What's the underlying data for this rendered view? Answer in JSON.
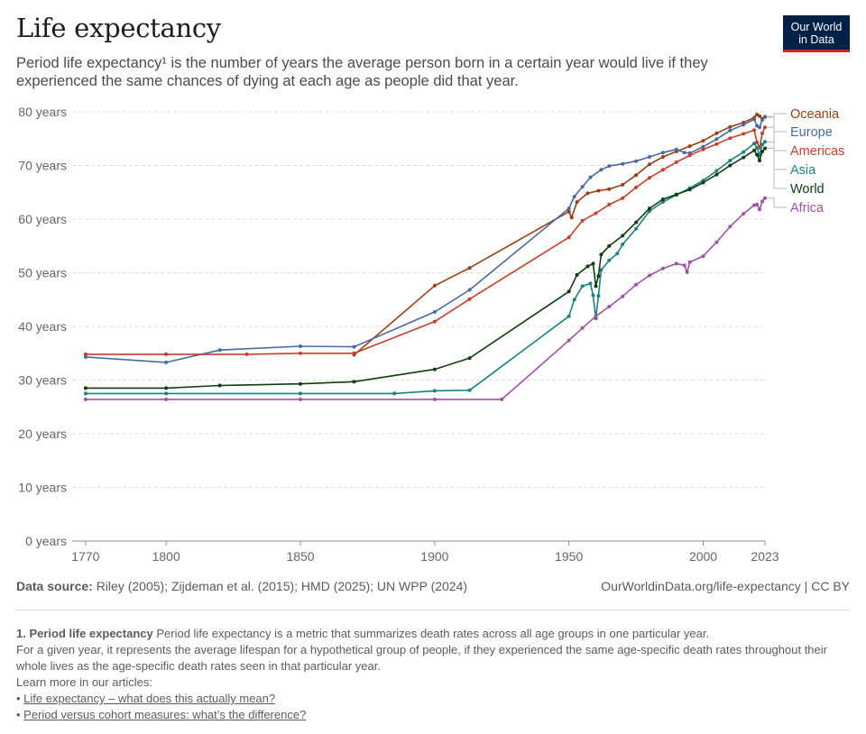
{
  "header": {
    "title": "Life expectancy",
    "subtitle": "Period life expectancy¹ is the number of years the average person born in a certain year would live if they experienced the same chances of dying at each age as people did that year.",
    "logo_line1": "Our World",
    "logo_line2": "in Data"
  },
  "footer": {
    "source_label": "Data source:",
    "source_text": " Riley (2005); Zijdeman et al. (2015); HMD (2025); UN WPP (2024)",
    "license": "OurWorldinData.org/life-expectancy | CC BY",
    "note_title": "1. Period life expectancy",
    "note_body": " Period life expectancy is a metric that summarizes death rates across all age groups in one particular year.",
    "note_body2": "For a given year, it represents the average lifespan for a hypothetical group of people, if they experienced the same age-specific death rates throughout their whole lives as the age-specific death rates seen in that particular year.",
    "note_learn": "Learn more in our articles:",
    "links": [
      "Life expectancy – what does this actually mean?",
      "Period versus cohort measures: what’s the difference?"
    ]
  },
  "chart_data": {
    "type": "line",
    "title": "Life expectancy",
    "xlim": [
      1765,
      2023
    ],
    "ylim": [
      0,
      80
    ],
    "x_ticks": [
      1770,
      1800,
      1850,
      1900,
      1950,
      2000,
      2023
    ],
    "x_tick_labels": [
      "1770",
      "1800",
      "1850",
      "1900",
      "1950",
      "2000",
      "2023"
    ],
    "y_ticks": [
      0,
      10,
      20,
      30,
      40,
      50,
      60,
      70,
      80
    ],
    "y_tick_labels": [
      "0 years",
      "10 years",
      "20 years",
      "30 years",
      "40 years",
      "50 years",
      "60 years",
      "70 years",
      "80 years"
    ],
    "grid": "horizontal dashed",
    "legend": "right, end labels",
    "series": [
      {
        "name": "Oceania",
        "color": "#9a3e0f",
        "points": [
          [
            1870,
            34.7
          ],
          [
            1900,
            47.6
          ],
          [
            1913,
            50.9
          ],
          [
            1950,
            61.4
          ],
          [
            1951,
            60.3
          ],
          [
            1953,
            63.2
          ],
          [
            1957,
            64.8
          ],
          [
            1961,
            65.3
          ],
          [
            1965,
            65.6
          ],
          [
            1970,
            66.4
          ],
          [
            1975,
            68.2
          ],
          [
            1980,
            70.2
          ],
          [
            1985,
            71.6
          ],
          [
            1990,
            72.6
          ],
          [
            1995,
            73.6
          ],
          [
            2000,
            74.6
          ],
          [
            2005,
            76.0
          ],
          [
            2010,
            77.2
          ],
          [
            2015,
            78.0
          ],
          [
            2019,
            78.9
          ],
          [
            2020,
            79.5
          ],
          [
            2021,
            79.2
          ],
          [
            2022,
            78.7
          ],
          [
            2023,
            79.0
          ]
        ]
      },
      {
        "name": "Europe",
        "color": "#4a6a9f",
        "points": [
          [
            1770,
            34.3
          ],
          [
            1800,
            33.3
          ],
          [
            1820,
            35.6
          ],
          [
            1850,
            36.3
          ],
          [
            1870,
            36.2
          ],
          [
            1900,
            42.7
          ],
          [
            1913,
            46.8
          ],
          [
            1950,
            62.0
          ],
          [
            1952,
            64.2
          ],
          [
            1955,
            66.0
          ],
          [
            1958,
            67.8
          ],
          [
            1962,
            69.2
          ],
          [
            1965,
            69.9
          ],
          [
            1970,
            70.3
          ],
          [
            1975,
            70.8
          ],
          [
            1980,
            71.6
          ],
          [
            1985,
            72.4
          ],
          [
            1990,
            73.0
          ],
          [
            1993,
            72.4
          ],
          [
            1995,
            72.3
          ],
          [
            2000,
            73.5
          ],
          [
            2005,
            74.9
          ],
          [
            2010,
            76.5
          ],
          [
            2015,
            77.6
          ],
          [
            2019,
            78.6
          ],
          [
            2020,
            77.4
          ],
          [
            2021,
            77.1
          ],
          [
            2022,
            78.5
          ],
          [
            2023,
            79.1
          ]
        ]
      },
      {
        "name": "Americas",
        "color": "#c63f2a",
        "points": [
          [
            1770,
            34.8
          ],
          [
            1800,
            34.8
          ],
          [
            1830,
            34.8
          ],
          [
            1850,
            35.0
          ],
          [
            1870,
            35.0
          ],
          [
            1900,
            40.9
          ],
          [
            1913,
            45.1
          ],
          [
            1950,
            56.6
          ],
          [
            1955,
            59.7
          ],
          [
            1960,
            61.1
          ],
          [
            1965,
            62.7
          ],
          [
            1970,
            63.9
          ],
          [
            1975,
            65.9
          ],
          [
            1980,
            67.7
          ],
          [
            1985,
            69.2
          ],
          [
            1990,
            70.6
          ],
          [
            1995,
            71.9
          ],
          [
            2000,
            73.0
          ],
          [
            2005,
            74.0
          ],
          [
            2010,
            75.1
          ],
          [
            2015,
            75.9
          ],
          [
            2019,
            76.6
          ],
          [
            2020,
            74.3
          ],
          [
            2021,
            73.3
          ],
          [
            2022,
            76.0
          ],
          [
            2023,
            77.1
          ]
        ]
      },
      {
        "name": "Asia",
        "color": "#18837f",
        "points": [
          [
            1770,
            27.5
          ],
          [
            1800,
            27.5
          ],
          [
            1850,
            27.5
          ],
          [
            1885,
            27.5
          ],
          [
            1900,
            28.0
          ],
          [
            1913,
            28.1
          ],
          [
            1950,
            41.9
          ],
          [
            1952,
            45.0
          ],
          [
            1955,
            47.5
          ],
          [
            1958,
            48.0
          ],
          [
            1959,
            45.8
          ],
          [
            1960,
            41.5
          ],
          [
            1961,
            45.7
          ],
          [
            1962,
            50.5
          ],
          [
            1965,
            52.3
          ],
          [
            1968,
            53.6
          ],
          [
            1970,
            55.3
          ],
          [
            1975,
            58.2
          ],
          [
            1980,
            61.5
          ],
          [
            1985,
            63.2
          ],
          [
            1990,
            64.5
          ],
          [
            1995,
            65.8
          ],
          [
            2000,
            67.2
          ],
          [
            2005,
            69.0
          ],
          [
            2010,
            70.9
          ],
          [
            2015,
            72.5
          ],
          [
            2019,
            74.1
          ],
          [
            2020,
            73.3
          ],
          [
            2021,
            71.9
          ],
          [
            2022,
            73.9
          ],
          [
            2023,
            74.4
          ]
        ]
      },
      {
        "name": "World",
        "color": "#103c10",
        "points": [
          [
            1770,
            28.5
          ],
          [
            1800,
            28.5
          ],
          [
            1820,
            29.0
          ],
          [
            1850,
            29.3
          ],
          [
            1870,
            29.7
          ],
          [
            1900,
            32.0
          ],
          [
            1913,
            34.1
          ],
          [
            1950,
            46.5
          ],
          [
            1953,
            49.6
          ],
          [
            1957,
            51.2
          ],
          [
            1959,
            51.7
          ],
          [
            1960,
            47.5
          ],
          [
            1961,
            49.4
          ],
          [
            1962,
            53.4
          ],
          [
            1965,
            55.0
          ],
          [
            1970,
            56.9
          ],
          [
            1975,
            59.4
          ],
          [
            1980,
            62.0
          ],
          [
            1985,
            63.7
          ],
          [
            1990,
            64.6
          ],
          [
            1995,
            65.5
          ],
          [
            2000,
            66.8
          ],
          [
            2005,
            68.3
          ],
          [
            2010,
            70.0
          ],
          [
            2015,
            71.5
          ],
          [
            2019,
            72.8
          ],
          [
            2020,
            72.0
          ],
          [
            2021,
            70.9
          ],
          [
            2022,
            72.6
          ],
          [
            2023,
            73.2
          ]
        ]
      },
      {
        "name": "Africa",
        "color": "#a450a8",
        "points": [
          [
            1770,
            26.4
          ],
          [
            1800,
            26.4
          ],
          [
            1850,
            26.4
          ],
          [
            1900,
            26.4
          ],
          [
            1925,
            26.4
          ],
          [
            1950,
            37.4
          ],
          [
            1955,
            39.7
          ],
          [
            1960,
            41.9
          ],
          [
            1965,
            43.7
          ],
          [
            1970,
            45.6
          ],
          [
            1975,
            47.8
          ],
          [
            1980,
            49.5
          ],
          [
            1985,
            50.8
          ],
          [
            1990,
            51.7
          ],
          [
            1993,
            51.4
          ],
          [
            1994,
            50.1
          ],
          [
            1995,
            52.0
          ],
          [
            2000,
            53.1
          ],
          [
            2005,
            55.7
          ],
          [
            2010,
            58.6
          ],
          [
            2015,
            61.0
          ],
          [
            2019,
            62.6
          ],
          [
            2020,
            62.7
          ],
          [
            2021,
            61.8
          ],
          [
            2022,
            63.3
          ],
          [
            2023,
            63.9
          ]
        ]
      }
    ]
  }
}
